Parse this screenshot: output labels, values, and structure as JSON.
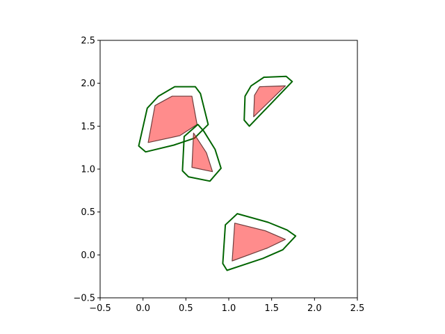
{
  "chart_data": {
    "type": "polygon",
    "title": "",
    "xlabel": "",
    "ylabel": "",
    "xlim": [
      -0.5,
      2.5
    ],
    "ylim": [
      -0.5,
      2.5
    ],
    "grid": false,
    "aspect": "equal",
    "xticks": [
      -0.5,
      0.0,
      0.5,
      1.0,
      1.5,
      2.0,
      2.5
    ],
    "yticks": [
      -0.5,
      0.0,
      0.5,
      1.0,
      1.5,
      2.0,
      2.5
    ],
    "xtick_labels": [
      "−0.5",
      "0.0",
      "0.5",
      "1.0",
      "1.5",
      "2.0",
      "2.5"
    ],
    "ytick_labels": [
      "−0.5",
      "0.0",
      "0.5",
      "1.0",
      "1.5",
      "2.0",
      "2.5"
    ],
    "colors": {
      "fill": "#ff0000",
      "fill_alpha": 0.45,
      "fill_edge": "#6e3b3b",
      "outline": "#006400"
    },
    "shapes": [
      {
        "filled": [
          [
            0.06,
            1.31
          ],
          [
            0.14,
            1.74
          ],
          [
            0.34,
            1.85
          ],
          [
            0.57,
            1.85
          ],
          [
            0.63,
            1.52
          ],
          [
            0.43,
            1.39
          ]
        ],
        "outline": [
          [
            -0.05,
            1.27
          ],
          [
            0.05,
            1.71
          ],
          [
            0.18,
            1.85
          ],
          [
            0.37,
            1.96
          ],
          [
            0.61,
            1.96
          ],
          [
            0.67,
            1.88
          ],
          [
            0.76,
            1.52
          ],
          [
            0.6,
            1.36
          ],
          [
            0.36,
            1.28
          ],
          [
            0.03,
            1.2
          ]
        ]
      },
      {
        "filled": [
          [
            0.59,
            1.42
          ],
          [
            0.74,
            1.19
          ],
          [
            0.81,
            0.97
          ],
          [
            0.57,
            1.02
          ]
        ],
        "outline": [
          [
            0.64,
            1.52
          ],
          [
            0.48,
            1.38
          ],
          [
            0.46,
            0.98
          ],
          [
            0.53,
            0.91
          ],
          [
            0.78,
            0.86
          ],
          [
            0.91,
            1.01
          ],
          [
            0.84,
            1.23
          ],
          [
            0.71,
            1.44
          ]
        ]
      },
      {
        "filled": [
          [
            1.29,
            1.61
          ],
          [
            1.3,
            1.86
          ],
          [
            1.36,
            1.96
          ],
          [
            1.66,
            1.97
          ]
        ],
        "outline": [
          [
            1.24,
            1.5
          ],
          [
            1.18,
            1.57
          ],
          [
            1.19,
            1.85
          ],
          [
            1.26,
            1.97
          ],
          [
            1.41,
            2.07
          ],
          [
            1.67,
            2.08
          ],
          [
            1.74,
            2.02
          ]
        ]
      },
      {
        "filled": [
          [
            1.04,
            -0.07
          ],
          [
            1.07,
            0.37
          ],
          [
            1.43,
            0.28
          ],
          [
            1.66,
            0.18
          ],
          [
            1.45,
            0.08
          ]
        ],
        "outline": [
          [
            0.93,
            -0.1
          ],
          [
            0.96,
            0.35
          ],
          [
            1.1,
            0.48
          ],
          [
            1.46,
            0.38
          ],
          [
            1.68,
            0.29
          ],
          [
            1.78,
            0.22
          ],
          [
            1.63,
            0.06
          ],
          [
            1.4,
            -0.04
          ],
          [
            0.98,
            -0.18
          ]
        ]
      }
    ]
  }
}
